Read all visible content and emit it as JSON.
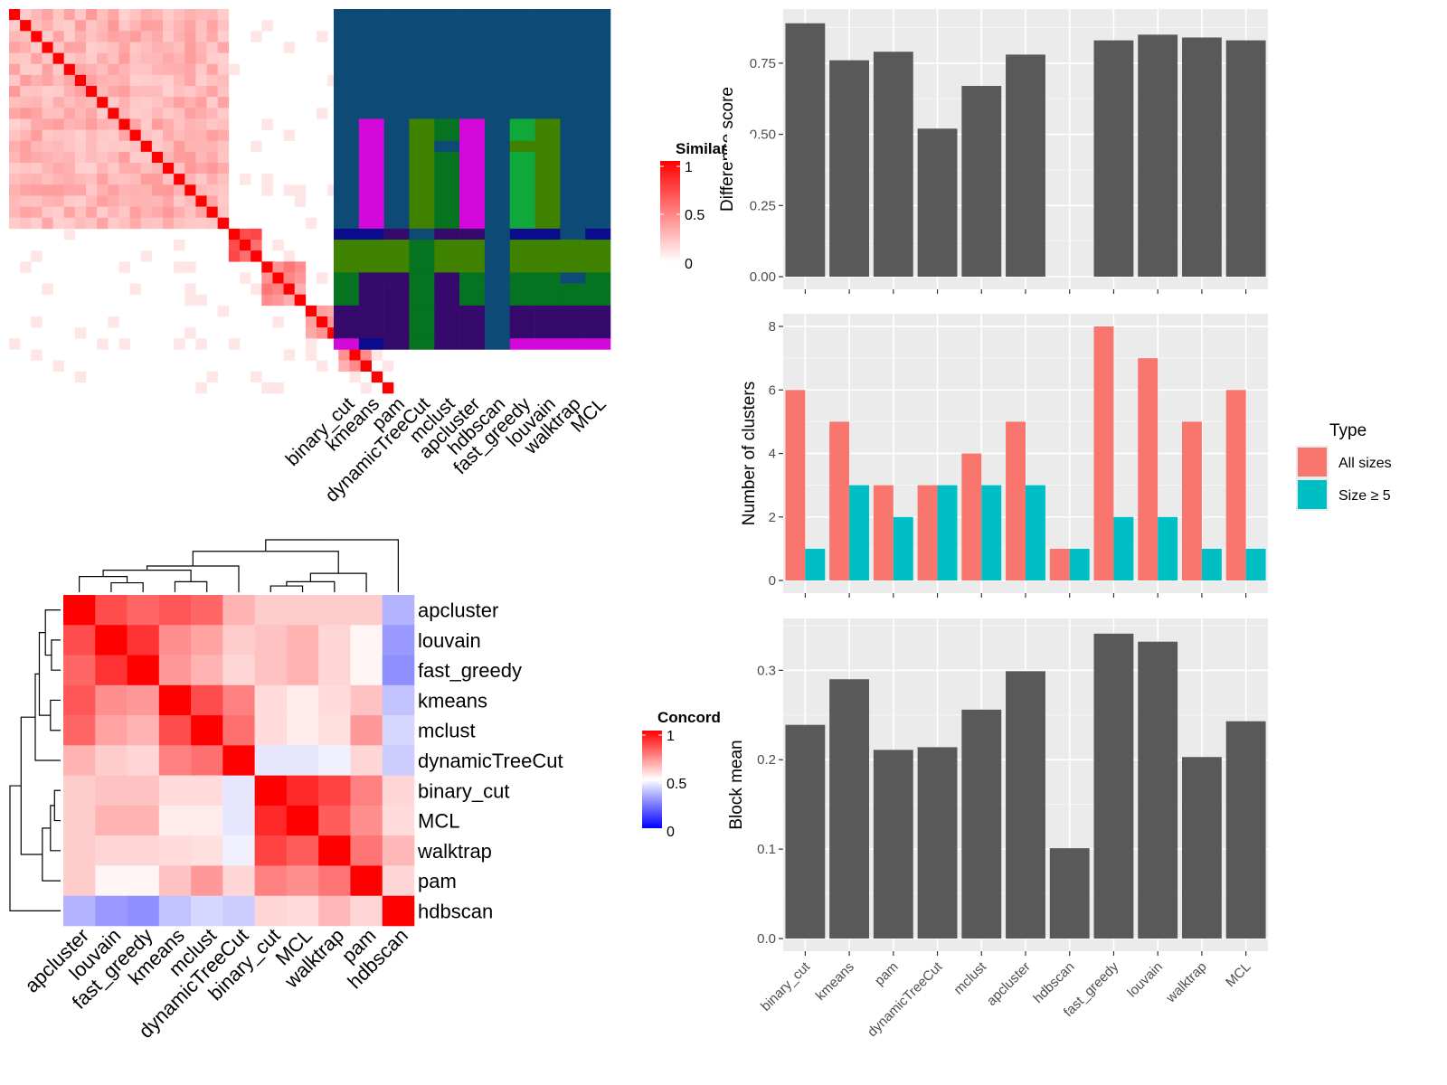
{
  "chart_data": [
    {
      "type": "heatmap",
      "legend_title": "Similar",
      "legend_ticks": [
        "1",
        "0.5",
        "0"
      ],
      "column_labels": [
        "binary_cut",
        "kmeans",
        "pam",
        "dynamicTreeCut",
        "mclust",
        "apcluster",
        "hdbscan",
        "fast_greedy",
        "louvain",
        "walktrap",
        "MCL"
      ],
      "n_terms": 35,
      "term_blocks": [
        {
          "start": 0,
          "end": 10,
          "intra": 0.35
        },
        {
          "start": 10,
          "end": 20,
          "intra": 0.35
        },
        {
          "start": 20,
          "end": 23,
          "intra": 0.8
        },
        {
          "start": 23,
          "end": 27,
          "intra": 0.5
        },
        {
          "start": 27,
          "end": 30,
          "intra": 0.5
        },
        {
          "start": 30,
          "end": 33,
          "intra": 0.45
        },
        {
          "start": 33,
          "end": 34,
          "intra": 0.4
        },
        {
          "start": 34,
          "end": 35,
          "intra": 1
        }
      ],
      "cluster_colors": {
        "A": "#0e4a76",
        "B": "#d408db",
        "C": "#3e8200",
        "D": "#067321",
        "E": "#10a83b",
        "F": "#360a6c",
        "G": "#0b0b8e"
      },
      "cluster_bands": [
        {
          "start": 0,
          "end": 10,
          "cols": [
            "A",
            "A",
            "A",
            "A",
            "A",
            "A",
            "A",
            "A",
            "A",
            "A",
            "A"
          ]
        },
        {
          "start": 10,
          "end": 12,
          "cols": [
            "A",
            "B",
            "A",
            "C",
            "D",
            "B",
            "A",
            "E",
            "C",
            "A",
            "A"
          ]
        },
        {
          "start": 12,
          "end": 13,
          "cols": [
            "A",
            "B",
            "A",
            "C",
            "A",
            "B",
            "A",
            "C",
            "C",
            "A",
            "A"
          ]
        },
        {
          "start": 13,
          "end": 20,
          "cols": [
            "A",
            "B",
            "A",
            "C",
            "D",
            "B",
            "A",
            "E",
            "C",
            "A",
            "A"
          ]
        },
        {
          "start": 20,
          "end": 21,
          "cols": [
            "G",
            "G",
            "F",
            "A",
            "F",
            "F",
            "A",
            "G",
            "G",
            "A",
            "G"
          ]
        },
        {
          "start": 21,
          "end": 24,
          "cols": [
            "C",
            "C",
            "C",
            "D",
            "C",
            "C",
            "A",
            "C",
            "C",
            "C",
            "C"
          ]
        },
        {
          "start": 24,
          "end": 25,
          "cols": [
            "D",
            "F",
            "F",
            "D",
            "F",
            "D",
            "A",
            "D",
            "D",
            "A",
            "D"
          ]
        },
        {
          "start": 25,
          "end": 27,
          "cols": [
            "D",
            "F",
            "F",
            "D",
            "F",
            "D",
            "A",
            "D",
            "D",
            "D",
            "D"
          ]
        },
        {
          "start": 27,
          "end": 30,
          "cols": [
            "F",
            "F",
            "F",
            "D",
            "F",
            "F",
            "A",
            "F",
            "F",
            "F",
            "F"
          ]
        },
        {
          "start": 30,
          "end": 31,
          "cols": [
            "B",
            "G",
            "F",
            "D",
            "F",
            "F",
            "A",
            "B",
            "B",
            "B",
            "B"
          ]
        }
      ]
    },
    {
      "type": "bar",
      "categories": [
        "binary_cut",
        "kmeans",
        "pam",
        "dynamicTreeCut",
        "mclust",
        "apcluster",
        "hdbscan",
        "fast_greedy",
        "louvain",
        "walktrap",
        "MCL"
      ],
      "values": [
        0.89,
        0.76,
        0.79,
        0.52,
        0.67,
        0.78,
        null,
        0.83,
        0.85,
        0.84,
        0.83
      ],
      "ylabel": "Difference score",
      "ylim": [
        0,
        0.94
      ],
      "yticks": [
        "0.00",
        "0.25",
        "0.50",
        "0.75"
      ],
      "grid": true
    },
    {
      "type": "bar",
      "categories": [
        "binary_cut",
        "kmeans",
        "pam",
        "dynamicTreeCut",
        "mclust",
        "apcluster",
        "hdbscan",
        "fast_greedy",
        "louvain",
        "walktrap",
        "MCL"
      ],
      "series": [
        {
          "name": "All sizes",
          "color": "#f8766d",
          "values": [
            6,
            5,
            3,
            3,
            4,
            5,
            1,
            8,
            7,
            5,
            6
          ]
        },
        {
          "name": "Size ≥ 5",
          "color": "#00bfc4",
          "values": [
            1,
            3,
            2,
            3,
            3,
            3,
            1,
            2,
            2,
            1,
            1
          ]
        }
      ],
      "ylabel": "Number of clusters",
      "ylim": [
        0,
        8.4
      ],
      "yticks": [
        "0",
        "2",
        "4",
        "6",
        "8"
      ],
      "legend_title": "Type",
      "legend_position": "right",
      "grid": true
    },
    {
      "type": "heatmap",
      "legend_title": "Concord",
      "legend_ticks": [
        "1",
        "0.5",
        "0"
      ],
      "labels": [
        "apcluster",
        "louvain",
        "fast_greedy",
        "kmeans",
        "mclust",
        "dynamicTreeCut",
        "binary_cut",
        "MCL",
        "walktrap",
        "pam",
        "hdbscan"
      ],
      "matrix": [
        [
          1.0,
          0.85,
          0.8,
          0.83,
          0.8,
          0.65,
          0.6,
          0.6,
          0.6,
          0.6,
          0.35
        ],
        [
          0.85,
          1.0,
          0.9,
          0.72,
          0.68,
          0.6,
          0.62,
          0.65,
          0.58,
          0.52,
          0.3
        ],
        [
          0.8,
          0.9,
          1.0,
          0.7,
          0.65,
          0.58,
          0.62,
          0.65,
          0.58,
          0.52,
          0.28
        ],
        [
          0.83,
          0.72,
          0.7,
          1.0,
          0.85,
          0.75,
          0.57,
          0.54,
          0.57,
          0.62,
          0.38
        ],
        [
          0.8,
          0.68,
          0.65,
          0.85,
          1.0,
          0.78,
          0.57,
          0.54,
          0.56,
          0.7,
          0.42
        ],
        [
          0.65,
          0.6,
          0.58,
          0.75,
          0.78,
          1.0,
          0.45,
          0.45,
          0.47,
          0.58,
          0.4
        ],
        [
          0.6,
          0.62,
          0.62,
          0.57,
          0.57,
          0.45,
          1.0,
          0.92,
          0.87,
          0.75,
          0.58
        ],
        [
          0.6,
          0.65,
          0.65,
          0.54,
          0.54,
          0.45,
          0.92,
          1.0,
          0.82,
          0.72,
          0.57
        ],
        [
          0.6,
          0.58,
          0.58,
          0.57,
          0.56,
          0.47,
          0.87,
          0.82,
          1.0,
          0.77,
          0.64
        ],
        [
          0.6,
          0.52,
          0.52,
          0.62,
          0.7,
          0.58,
          0.75,
          0.72,
          0.77,
          1.0,
          0.58
        ],
        [
          0.35,
          0.3,
          0.28,
          0.38,
          0.42,
          0.4,
          0.58,
          0.57,
          0.64,
          0.58,
          1.0
        ]
      ]
    },
    {
      "type": "bar",
      "categories": [
        "binary_cut",
        "kmeans",
        "pam",
        "dynamicTreeCut",
        "mclust",
        "apcluster",
        "hdbscan",
        "fast_greedy",
        "louvain",
        "walktrap",
        "MCL"
      ],
      "values": [
        0.239,
        0.29,
        0.211,
        0.214,
        0.256,
        0.299,
        0.101,
        0.341,
        0.332,
        0.203,
        0.243
      ],
      "ylabel": "Block mean",
      "ylim": [
        0,
        0.358
      ],
      "yticks": [
        "0.0",
        "0.1",
        "0.2",
        "0.3"
      ],
      "grid": true
    }
  ]
}
